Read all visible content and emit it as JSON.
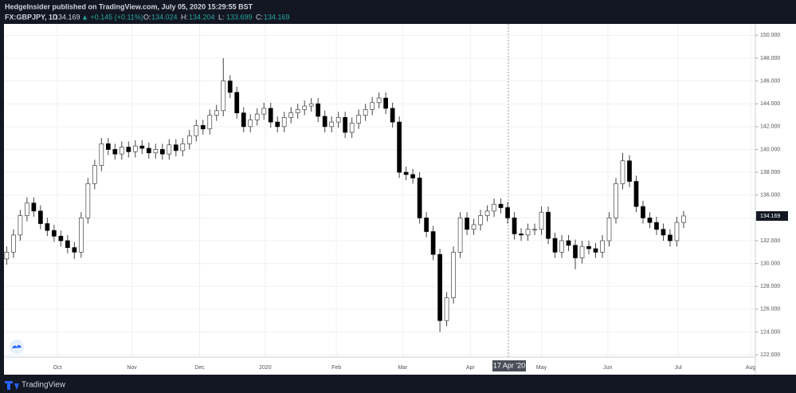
{
  "header": {
    "publisher": "HedgeInsider published on TradingView.com, July 05, 2020 15:29:55 BST",
    "symbol": "FX:GBPJPY, 1D",
    "last": "134.169",
    "change": "▲ +0.145 (+0.11%)",
    "ohlc": [
      {
        "label": "O:",
        "value": "134.024"
      },
      {
        "label": "H:",
        "value": "134.204"
      },
      {
        "label": "L:",
        "value": "133.699"
      },
      {
        "label": "C:",
        "value": "134.169"
      }
    ]
  },
  "footer": {
    "brand": "TradingView"
  },
  "chart_data": {
    "type": "candlestick",
    "up_color": "#ffffff",
    "down_color": "#000000",
    "wick_color": "#444444",
    "crosshair_label": "17 Apr '20",
    "price_label": 134.169,
    "grid": true,
    "xlim": [
      -0.4,
      110.6
    ],
    "xticks": [
      {
        "value": 7.5,
        "label": "Oct"
      },
      {
        "value": 18.5,
        "label": "Nov"
      },
      {
        "value": 28.5,
        "label": "Dec"
      },
      {
        "value": 38.2,
        "label": "2020"
      },
      {
        "value": 48.7,
        "label": "Feb"
      },
      {
        "value": 58.5,
        "label": "Mar"
      },
      {
        "value": 68.5,
        "label": "Apr"
      },
      {
        "value": 79,
        "label": "May"
      },
      {
        "value": 88.8,
        "label": "Jun"
      },
      {
        "value": 99.2,
        "label": "Jul"
      },
      {
        "value": 109.9,
        "label": "Aug"
      }
    ],
    "ylim": [
      121.8,
      151.0
    ],
    "yticks": [
      {
        "value": 122,
        "label": "122.000"
      },
      {
        "value": 124,
        "label": "124.000"
      },
      {
        "value": 126,
        "label": "126.000"
      },
      {
        "value": 128,
        "label": "128.000"
      },
      {
        "value": 130,
        "label": "130.000"
      },
      {
        "value": 132,
        "label": "132.000"
      },
      {
        "value": 134,
        "label": "134.000"
      },
      {
        "value": 136,
        "label": "136.000"
      },
      {
        "value": 138,
        "label": "138.000"
      },
      {
        "value": 140,
        "label": "140.000"
      },
      {
        "value": 142,
        "label": "142.000"
      },
      {
        "value": 144,
        "label": "144.000"
      },
      {
        "value": 146,
        "label": "146.000"
      },
      {
        "value": 148,
        "label": "148.000"
      },
      {
        "value": 150,
        "label": "150.000"
      }
    ],
    "open": [
      130.4,
      131.0,
      132.5,
      134.2,
      135.3,
      134.6,
      133.5,
      132.9,
      132.4,
      132.0,
      131.4,
      131.0,
      134.0,
      137.0,
      138.6,
      140.5,
      140.0,
      139.6,
      140.2,
      139.8,
      140.3,
      140.1,
      139.7,
      140.0,
      139.6,
      140.4,
      139.9,
      140.5,
      141.2,
      142.1,
      141.8,
      143.0,
      143.4,
      146.0,
      145.0,
      143.2,
      142.0,
      142.6,
      143.1,
      143.6,
      142.4,
      142.0,
      142.8,
      143.2,
      143.5,
      143.8,
      144.0,
      142.9,
      142.0,
      142.4,
      142.8,
      141.5,
      142.3,
      143.0,
      143.5,
      144.1,
      144.5,
      143.6,
      142.4,
      138.0,
      137.8,
      137.5,
      134.0,
      132.8,
      130.8,
      125.0,
      127.0,
      131.0,
      134.0,
      133.0,
      133.4,
      134.2,
      134.6,
      135.2,
      134.9,
      134.0,
      132.6,
      132.5,
      133.0,
      133.0,
      134.5,
      132.2,
      131.0,
      132.0,
      131.6,
      130.5,
      131.5,
      131.3,
      131.0,
      132.0,
      134.0,
      137.0,
      139.0,
      137.2,
      135.0,
      134.0,
      133.6,
      133.0,
      132.5,
      132.0,
      133.6
    ],
    "high": [
      131.5,
      133.0,
      134.7,
      135.8,
      135.8,
      135.1,
      134.0,
      133.4,
      132.9,
      132.5,
      131.9,
      134.5,
      137.5,
      139.1,
      141.0,
      141.0,
      140.5,
      140.7,
      140.7,
      140.8,
      140.8,
      140.6,
      140.5,
      140.5,
      140.9,
      140.9,
      141.0,
      141.7,
      142.6,
      142.6,
      143.5,
      143.9,
      148.0,
      146.5,
      145.5,
      143.7,
      143.1,
      143.6,
      144.1,
      144.1,
      142.9,
      143.3,
      143.7,
      144.0,
      144.3,
      144.5,
      144.5,
      143.4,
      142.9,
      143.3,
      143.3,
      142.8,
      143.5,
      144.0,
      144.6,
      145.0,
      145.0,
      144.1,
      142.9,
      138.5,
      138.3,
      138.0,
      134.5,
      133.3,
      131.3,
      127.5,
      131.5,
      134.5,
      134.5,
      133.9,
      134.7,
      135.1,
      135.7,
      135.7,
      135.4,
      134.5,
      133.1,
      133.5,
      133.5,
      135.0,
      135.0,
      132.7,
      132.5,
      132.5,
      132.1,
      132.0,
      132.0,
      131.8,
      132.5,
      134.5,
      137.5,
      139.7,
      139.5,
      137.7,
      135.5,
      134.5,
      134.1,
      133.5,
      133.0,
      134.1,
      134.6
    ],
    "low": [
      129.9,
      130.5,
      132.0,
      133.7,
      134.1,
      133.0,
      132.4,
      131.9,
      131.5,
      130.9,
      130.4,
      130.5,
      133.5,
      136.5,
      138.1,
      139.5,
      139.1,
      139.1,
      139.3,
      139.3,
      139.6,
      139.2,
      139.2,
      139.1,
      139.1,
      139.4,
      139.4,
      140.0,
      140.7,
      141.3,
      141.3,
      142.5,
      142.9,
      144.5,
      142.7,
      141.5,
      141.5,
      142.1,
      142.6,
      141.9,
      141.5,
      141.5,
      142.3,
      142.7,
      143.0,
      143.3,
      142.4,
      141.5,
      141.5,
      141.9,
      141.0,
      141.0,
      141.8,
      142.5,
      143.0,
      143.6,
      143.1,
      141.9,
      137.5,
      137.3,
      137.0,
      133.5,
      132.3,
      130.3,
      124.0,
      124.5,
      126.5,
      130.5,
      132.5,
      132.5,
      132.9,
      133.7,
      134.1,
      134.4,
      133.5,
      132.1,
      132.0,
      132.0,
      132.5,
      132.5,
      131.7,
      130.5,
      130.5,
      131.1,
      129.5,
      130.0,
      130.8,
      130.5,
      130.5,
      131.5,
      133.5,
      136.5,
      136.7,
      134.5,
      133.5,
      133.1,
      132.5,
      132.0,
      131.5,
      131.5,
      133.1
    ],
    "close": [
      131.0,
      132.5,
      134.2,
      135.3,
      134.6,
      133.5,
      132.9,
      132.4,
      132.0,
      131.4,
      131.0,
      134.0,
      137.0,
      138.6,
      140.5,
      140.0,
      139.6,
      140.2,
      139.8,
      140.3,
      140.1,
      139.7,
      140.0,
      139.6,
      140.4,
      139.9,
      140.5,
      141.2,
      142.1,
      141.8,
      143.0,
      143.4,
      146.0,
      145.0,
      143.2,
      142.0,
      142.6,
      143.1,
      143.6,
      142.4,
      142.0,
      142.8,
      143.2,
      143.5,
      143.8,
      144.0,
      142.9,
      142.0,
      142.4,
      142.8,
      141.5,
      142.3,
      143.0,
      143.5,
      144.1,
      144.5,
      143.6,
      142.4,
      138.0,
      137.8,
      137.5,
      134.0,
      132.8,
      130.8,
      125.0,
      127.0,
      131.0,
      134.0,
      133.0,
      133.4,
      134.2,
      134.6,
      135.2,
      134.9,
      134.0,
      132.6,
      132.5,
      133.0,
      133.0,
      134.5,
      132.2,
      131.0,
      132.0,
      131.6,
      130.5,
      131.5,
      131.3,
      131.0,
      132.0,
      134.0,
      137.0,
      139.0,
      137.2,
      135.0,
      134.0,
      133.6,
      133.0,
      132.5,
      132.0,
      133.6,
      134.169
    ]
  }
}
